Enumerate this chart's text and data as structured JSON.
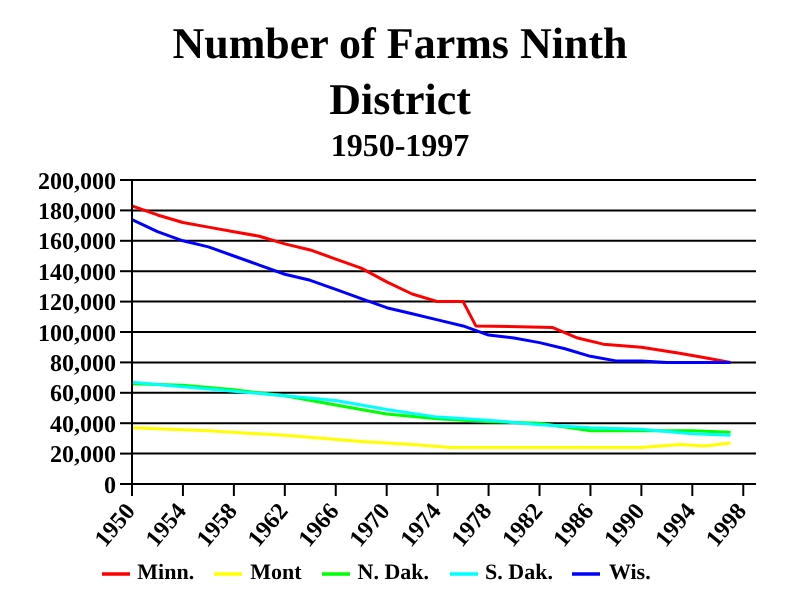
{
  "chart_data": {
    "type": "line",
    "title": "Number of Farms Ninth District",
    "subtitle": "1950-1997",
    "xlim": [
      1950,
      1999
    ],
    "xticks": [
      1950,
      1954,
      1958,
      1962,
      1966,
      1970,
      1974,
      1978,
      1982,
      1986,
      1990,
      1994,
      1998
    ],
    "ylim": [
      0,
      200000
    ],
    "yticks": [
      0,
      {
        "value": 20000,
        "label": "20,000"
      },
      {
        "value": 40000,
        "label": "40,000"
      },
      {
        "value": 60000,
        "label": "60,000"
      },
      {
        "value": 80000,
        "label": "80,000"
      },
      {
        "value": 100000,
        "label": "100,000"
      },
      {
        "value": 120000,
        "label": "120,000"
      },
      {
        "value": 140000,
        "label": "140,000"
      },
      {
        "value": 160000,
        "label": "160,000"
      },
      {
        "value": 180000,
        "label": "180,000"
      },
      {
        "value": 200000,
        "label": "200,000"
      }
    ],
    "grid": "y",
    "legend": "bottom",
    "marker": "none",
    "line_style": "solid",
    "series": [
      {
        "name": "Minn.",
        "color": "#ff0000",
        "x": [
          1950,
          1952,
          1954,
          1956,
          1958,
          1960,
          1962,
          1964,
          1966,
          1968,
          1970,
          1972,
          1974,
          1976,
          1977,
          1983,
          1985,
          1987,
          1990,
          1993,
          1995,
          1997
        ],
        "values": [
          183000,
          177000,
          172000,
          169000,
          166000,
          163000,
          158000,
          154000,
          148000,
          142000,
          133000,
          125000,
          120000,
          120000,
          104000,
          103000,
          96000,
          92000,
          90000,
          86000,
          83000,
          80000
        ]
      },
      {
        "name": "Mont",
        "color": "#ffff00",
        "x": [
          1950,
          1956,
          1962,
          1968,
          1972,
          1975,
          1985,
          1990,
          1993,
          1995,
          1997
        ],
        "values": [
          37000,
          35000,
          32000,
          28000,
          26000,
          24000,
          24000,
          24000,
          26000,
          25000,
          27000
        ]
      },
      {
        "name": "N. Dak.",
        "color": "#00ff00",
        "x": [
          1950,
          1954,
          1958,
          1962,
          1966,
          1970,
          1974,
          1978,
          1982,
          1986,
          1990,
          1994,
          1997
        ],
        "values": [
          66000,
          65000,
          62000,
          58000,
          52000,
          46000,
          43000,
          41000,
          40000,
          35000,
          35000,
          35000,
          34000
        ]
      },
      {
        "name": "S. Dak.",
        "color": "#00ffff",
        "x": [
          1950,
          1954,
          1958,
          1962,
          1966,
          1970,
          1974,
          1978,
          1982,
          1986,
          1990,
          1994,
          1997
        ],
        "values": [
          67000,
          64000,
          61000,
          58000,
          55000,
          49000,
          44000,
          42000,
          39000,
          37000,
          36000,
          33000,
          32000
        ]
      },
      {
        "name": "Wis.",
        "color": "#0000ff",
        "x": [
          1950,
          1952,
          1954,
          1956,
          1958,
          1960,
          1962,
          1964,
          1966,
          1968,
          1970,
          1972,
          1974,
          1976,
          1978,
          1980,
          1982,
          1984,
          1986,
          1988,
          1990,
          1992,
          1997
        ],
        "values": [
          174000,
          166000,
          160000,
          156000,
          150000,
          144000,
          138000,
          134000,
          128000,
          122000,
          116000,
          112000,
          108000,
          104000,
          98000,
          96000,
          93000,
          89000,
          84000,
          81000,
          81000,
          80000,
          80000
        ]
      }
    ]
  }
}
